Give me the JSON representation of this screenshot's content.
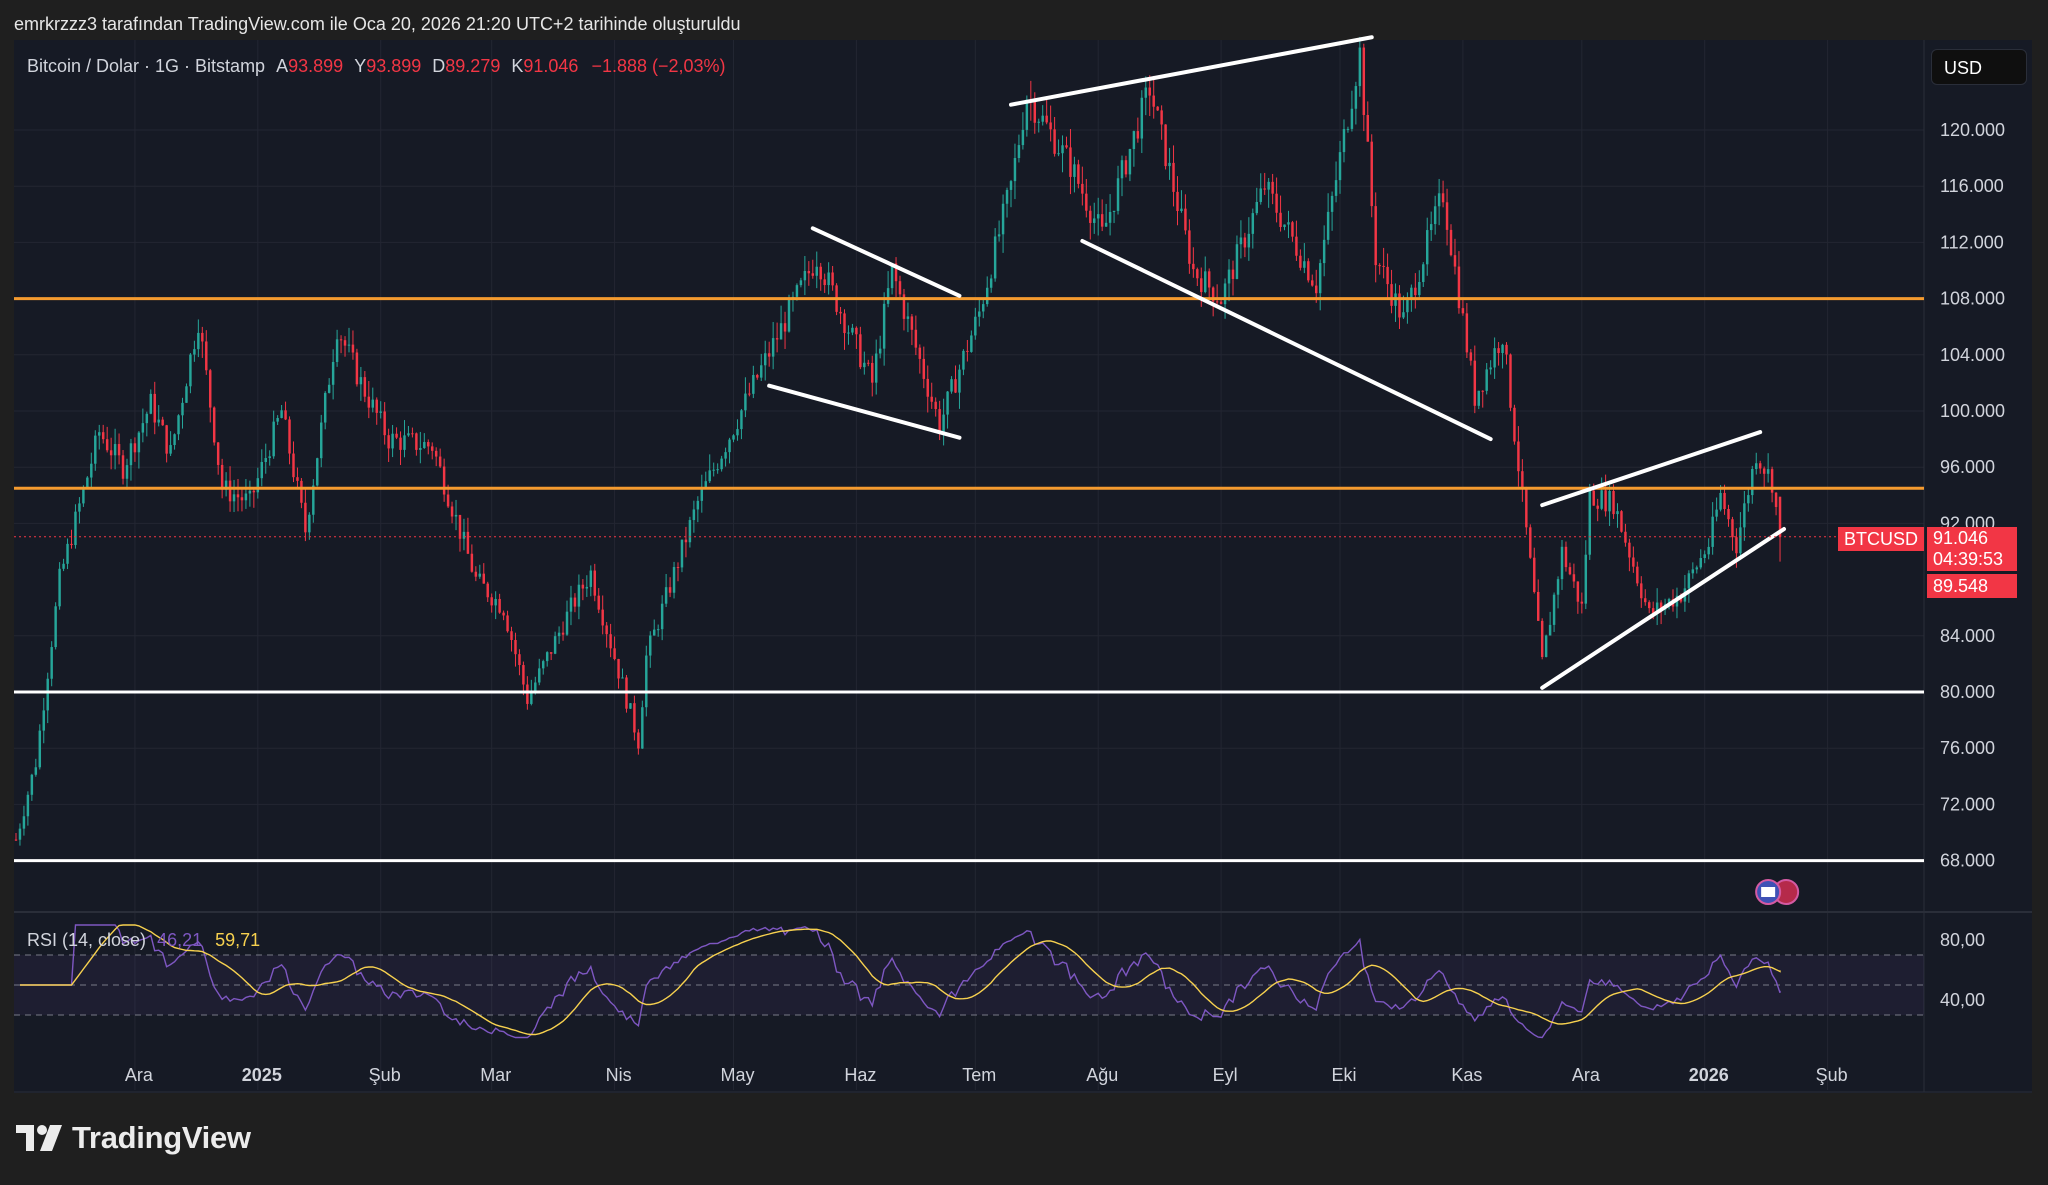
{
  "caption": "emrkrzzz3 tarafından TradingView.com ile Oca 20, 2026 21:20 UTC+2 tarihinde oluşturuldu",
  "legend": {
    "symbol": "Bitcoin / Dolar · 1G · Bitstamp",
    "open_label": "A",
    "open": "93.899",
    "high_label": "Y",
    "high": "93.899",
    "low_label": "D",
    "low": "89.279",
    "close_label": "K",
    "close": "91.046",
    "change": "−1.888 (−2,03%)"
  },
  "currency_button": "USD",
  "last_price": {
    "ticker": "BTCUSD",
    "price": "91.046",
    "countdown": "04:39:53",
    "prev_price": "89.548"
  },
  "rsi_legend": {
    "name": "RSI (14, close)",
    "rsi": "46,21",
    "ma": "59,71"
  },
  "brand": "TradingView",
  "colors": {
    "background": "#161a25",
    "up": "#26a69a",
    "down": "#f23645",
    "orange_line": "#f59b2f",
    "white_line": "#ffffff",
    "rsi_line": "#7e57c2",
    "rsi_ma": "#f7d14f"
  },
  "chart_data": {
    "type": "candlestick",
    "title": "Bitcoin / Dolar · 1G · Bitstamp",
    "y_axis": {
      "ticks": [
        "120.000",
        "116.000",
        "112.000",
        "108.000",
        "104.000",
        "100.000",
        "96.000",
        "92.000",
        "84.000",
        "80.000",
        "76.000",
        "72.000",
        "68.000"
      ],
      "tick_values": [
        120000,
        116000,
        112000,
        108000,
        104000,
        100000,
        96000,
        92000,
        84000,
        80000,
        76000,
        72000,
        68000
      ],
      "range": [
        66000,
        126500
      ]
    },
    "x_axis": {
      "ticks": [
        "Ara",
        "2025",
        "Şub",
        "Mar",
        "Nis",
        "May",
        "Haz",
        "Tem",
        "Ağu",
        "Eyl",
        "Eki",
        "Kas",
        "Ara",
        "2026",
        "Şub"
      ],
      "bold": [
        "2025",
        "2026"
      ]
    },
    "price_path": [
      [
        "2024-11-01",
        69500
      ],
      [
        "2024-11-06",
        75000
      ],
      [
        "2024-11-12",
        88000
      ],
      [
        "2024-11-22",
        98500
      ],
      [
        "2024-11-28",
        96000
      ],
      [
        "2024-12-05",
        100500
      ],
      [
        "2024-12-10",
        97000
      ],
      [
        "2024-12-17",
        106500
      ],
      [
        "2024-12-23",
        94500
      ],
      [
        "2024-12-30",
        93500
      ],
      [
        "2025-01-07",
        100000
      ],
      [
        "2025-01-13",
        91500
      ],
      [
        "2025-01-21",
        106000
      ],
      [
        "2025-01-27",
        102000
      ],
      [
        "2025-02-03",
        98000
      ],
      [
        "2025-02-14",
        97500
      ],
      [
        "2025-02-25",
        88000
      ],
      [
        "2025-03-04",
        86000
      ],
      [
        "2025-03-10",
        79500
      ],
      [
        "2025-03-21",
        86000
      ],
      [
        "2025-03-26",
        88500
      ],
      [
        "2025-04-07",
        76500
      ],
      [
        "2025-04-09",
        82500
      ],
      [
        "2025-04-22",
        93500
      ],
      [
        "2025-05-08",
        103000
      ],
      [
        "2025-05-22",
        111000
      ],
      [
        "2025-06-05",
        102000
      ],
      [
        "2025-06-10",
        110000
      ],
      [
        "2025-06-22",
        99000
      ],
      [
        "2025-07-02",
        107000
      ],
      [
        "2025-07-10",
        116000
      ],
      [
        "2025-07-14",
        122500
      ],
      [
        "2025-07-25",
        117500
      ],
      [
        "2025-08-02",
        112500
      ],
      [
        "2025-08-14",
        123000
      ],
      [
        "2025-08-25",
        110000
      ],
      [
        "2025-09-01",
        108000
      ],
      [
        "2025-09-12",
        116000
      ],
      [
        "2025-09-25",
        109000
      ],
      [
        "2025-10-06",
        125500
      ],
      [
        "2025-10-10",
        111000
      ],
      [
        "2025-10-17",
        106500
      ],
      [
        "2025-10-27",
        115500
      ],
      [
        "2025-11-04",
        101000
      ],
      [
        "2025-11-11",
        105500
      ],
      [
        "2025-11-21",
        82000
      ],
      [
        "2025-11-26",
        90000
      ],
      [
        "2025-12-01",
        86000
      ],
      [
        "2025-12-03",
        94000
      ],
      [
        "2025-12-09",
        93500
      ],
      [
        "2025-12-18",
        85500
      ],
      [
        "2025-12-26",
        87000
      ],
      [
        "2026-01-02",
        90500
      ],
      [
        "2026-01-05",
        94000
      ],
      [
        "2026-01-09",
        90500
      ],
      [
        "2026-01-14",
        97000
      ],
      [
        "2026-01-18",
        95000
      ],
      [
        "2026-01-20",
        91046
      ]
    ],
    "horizontal_lines": [
      {
        "value": 108000,
        "color": "orange"
      },
      {
        "value": 94500,
        "color": "orange"
      },
      {
        "value": 80000,
        "color": "white"
      },
      {
        "value": 68000,
        "color": "white"
      }
    ],
    "trendlines": [
      {
        "from": [
          "2025-07-10",
          121800
        ],
        "to": [
          "2025-10-09",
          126600
        ]
      },
      {
        "from": [
          "2025-07-28",
          112100
        ],
        "to": [
          "2025-11-08",
          98000
        ]
      },
      {
        "from": [
          "2025-05-21",
          113000
        ],
        "to": [
          "2025-06-27",
          108200
        ]
      },
      {
        "from": [
          "2025-05-10",
          101800
        ],
        "to": [
          "2025-06-27",
          98100
        ]
      },
      {
        "from": [
          "2025-11-21",
          93300
        ],
        "to": [
          "2026-01-15",
          98500
        ]
      },
      {
        "from": [
          "2025-11-21",
          80300
        ],
        "to": [
          "2026-01-21",
          91600
        ]
      }
    ],
    "rsi": {
      "period": 14,
      "current": 46.21,
      "ma": 59.71,
      "ticks": [
        "80,00",
        "40,00"
      ],
      "bands": [
        70,
        50,
        30
      ]
    },
    "grid": true,
    "legend_position": "top-left"
  }
}
